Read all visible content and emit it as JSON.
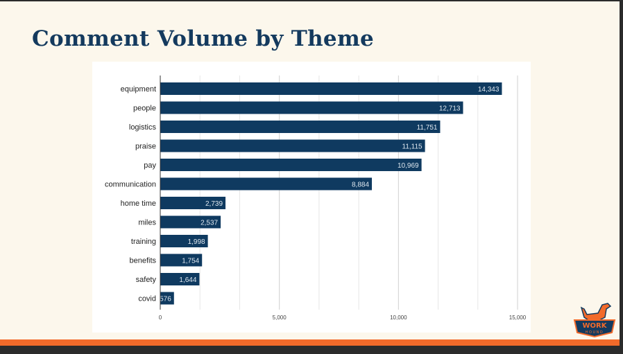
{
  "slide": {
    "title": "Comment Volume by Theme"
  },
  "colors": {
    "bar": "#0f3a60",
    "title": "#143a5e",
    "accent": "#f26a2a",
    "background": "#fcf7ec"
  },
  "logo": {
    "text_top": "WORK",
    "text_bottom": "HOUND"
  },
  "chart_data": {
    "type": "bar",
    "orientation": "horizontal",
    "categories": [
      "equipment",
      "people",
      "logistics",
      "praise",
      "pay",
      "communication",
      "home time",
      "miles",
      "training",
      "benefits",
      "safety",
      "covid"
    ],
    "values": [
      14343,
      12713,
      11751,
      11115,
      10969,
      8884,
      2739,
      2537,
      1998,
      1754,
      1644,
      576
    ],
    "value_labels": [
      "14,343",
      "12,713",
      "11,751",
      "11,115",
      "10,969",
      "8,884",
      "2,739",
      "2,537",
      "1,998",
      "1,754",
      "1,644",
      "576"
    ],
    "xticks": [
      0,
      5000,
      10000,
      15000
    ],
    "xtick_labels": [
      "0",
      "5,000",
      "10,000",
      "15,000"
    ],
    "xlim": [
      0,
      15000
    ],
    "grid": true,
    "title": "",
    "xlabel": "",
    "ylabel": ""
  }
}
